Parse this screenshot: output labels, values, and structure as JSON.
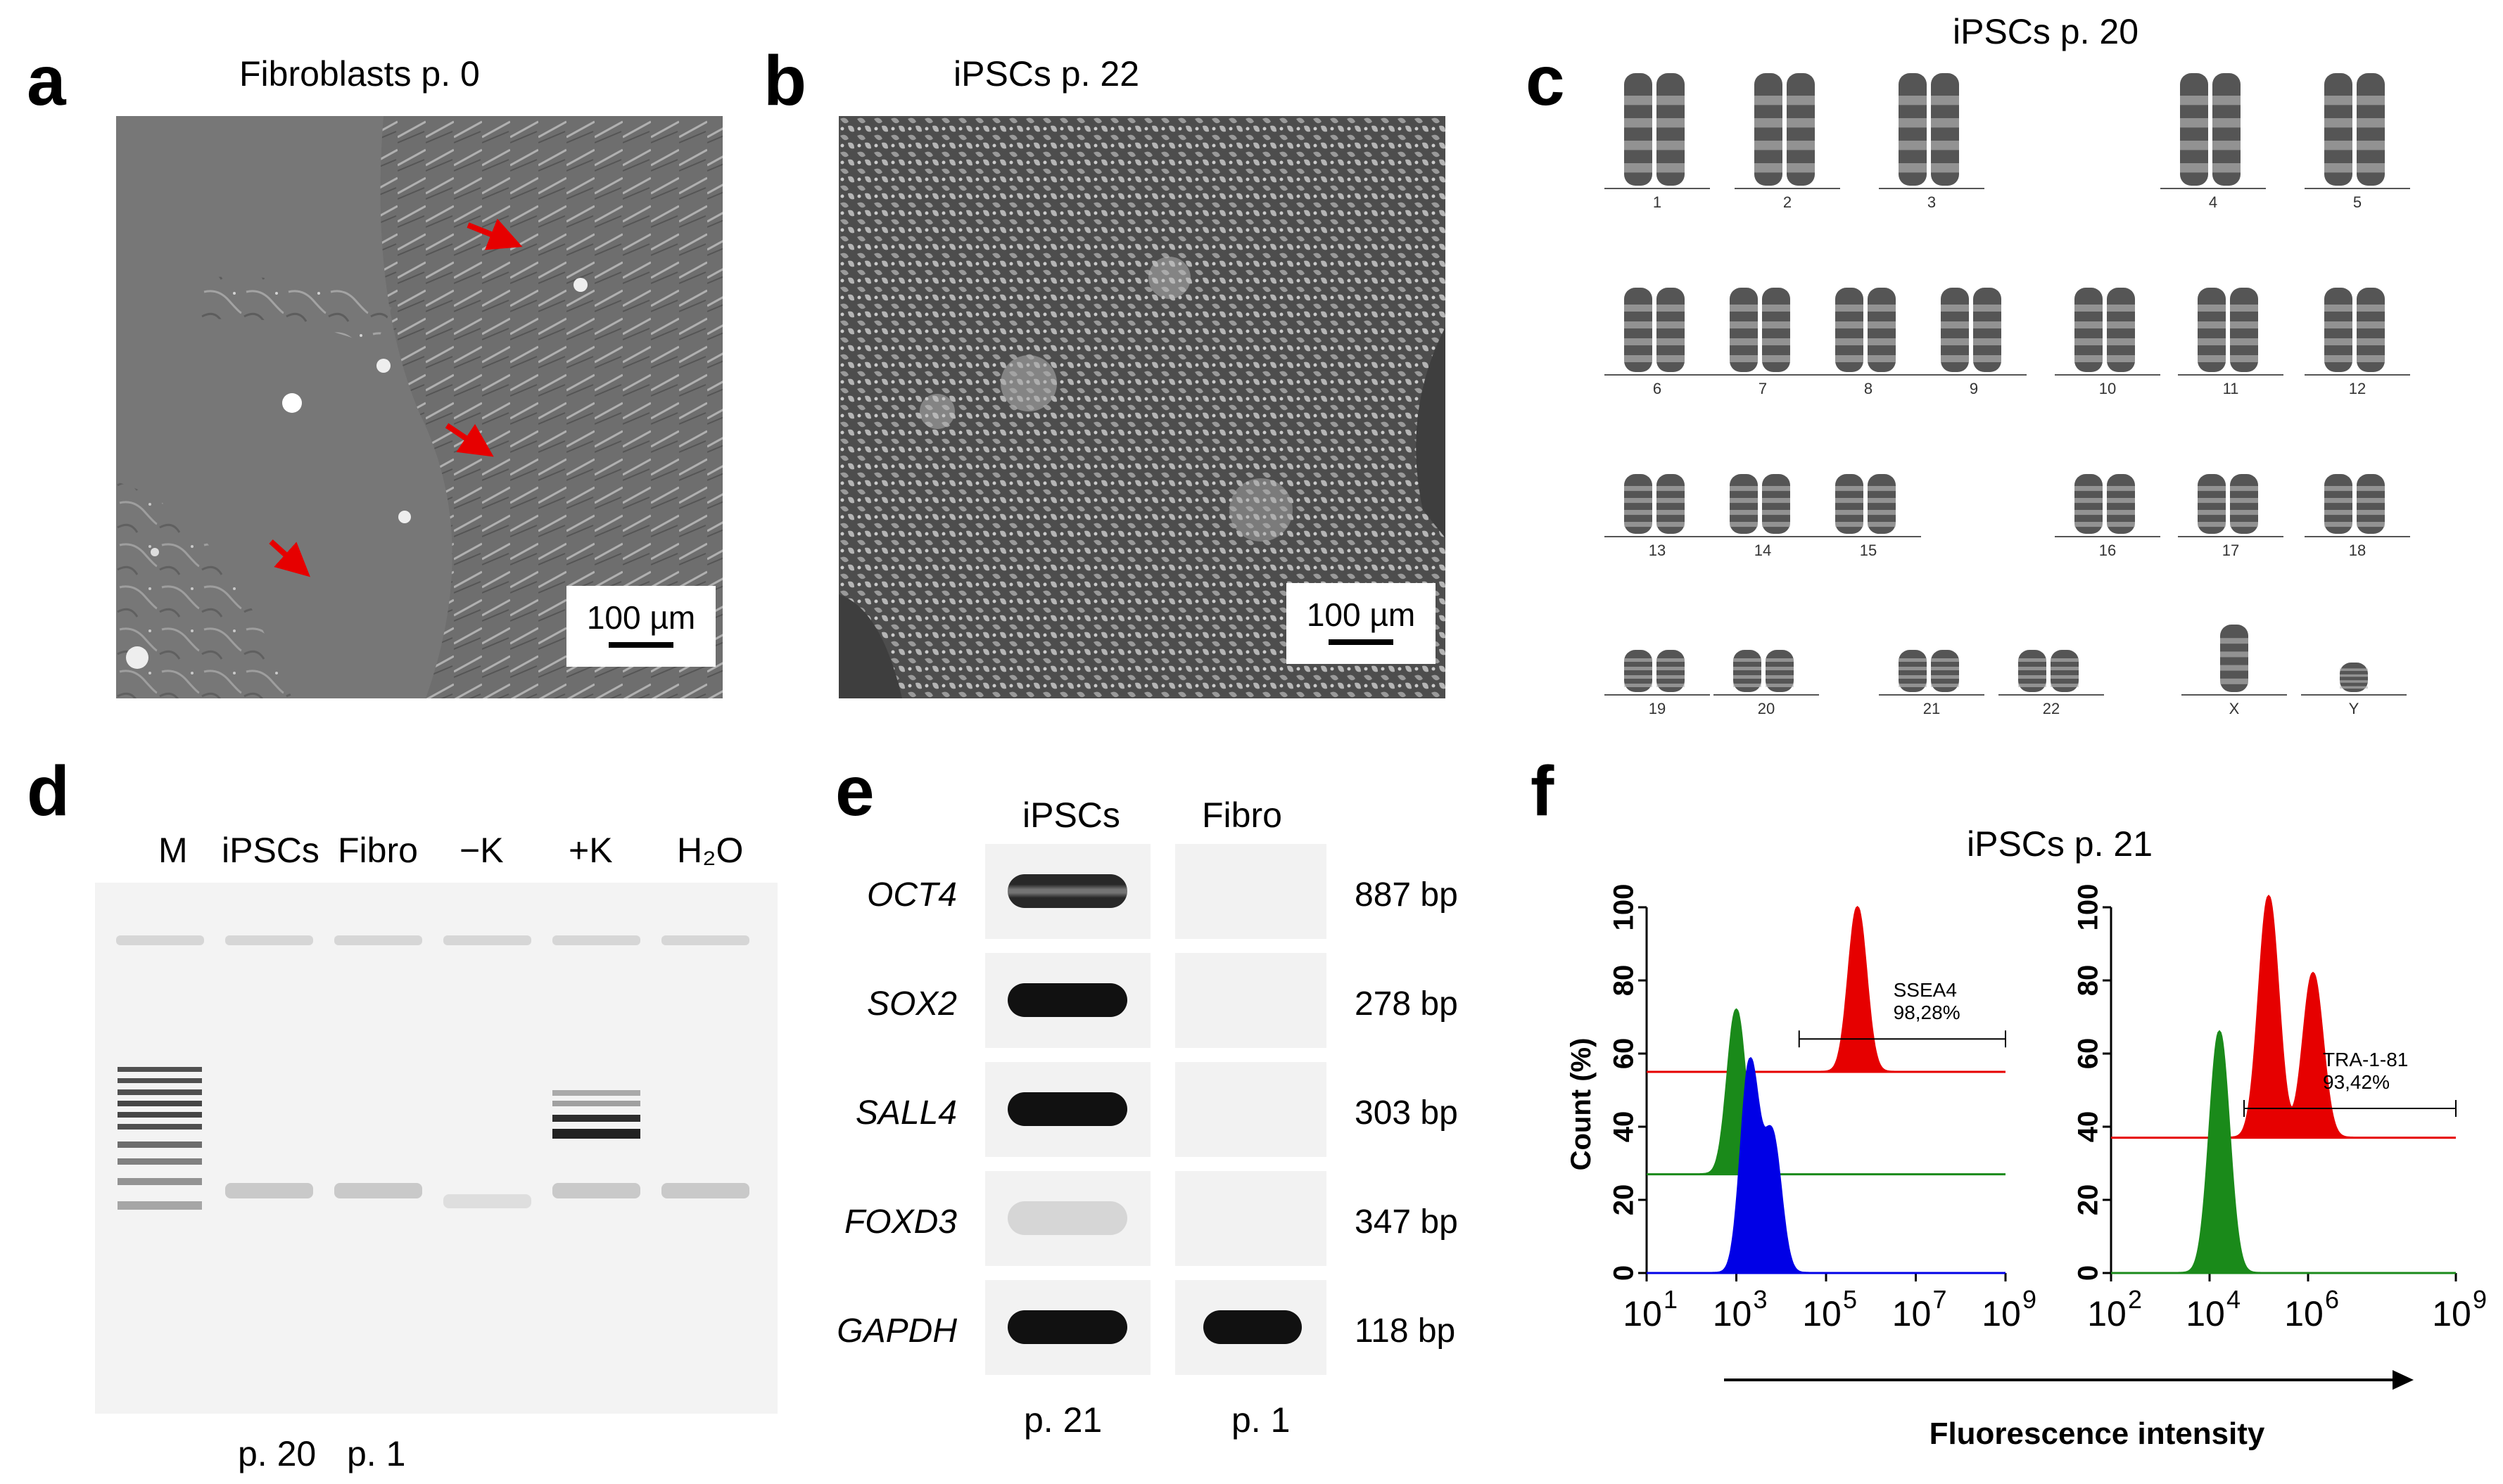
{
  "panels": {
    "a": {
      "letter": "a",
      "title": "Fibroblasts p. 0",
      "scale_label": "100 µm"
    },
    "b": {
      "letter": "b",
      "title": "iPSCs p. 22",
      "scale_label": "100 µm"
    },
    "c": {
      "letter": "c",
      "title": "iPSCs p. 20",
      "chromosomes": [
        "1",
        "2",
        "3",
        "4",
        "5",
        "6",
        "7",
        "8",
        "9",
        "10",
        "11",
        "12",
        "13",
        "14",
        "15",
        "16",
        "17",
        "18",
        "19",
        "20",
        "21",
        "22",
        "X",
        "Y"
      ]
    },
    "d": {
      "letter": "d",
      "lanes": [
        "M",
        "iPSCs",
        "Fibro",
        "−K",
        "+K",
        "H₂O"
      ],
      "passages": [
        "p. 20",
        "p. 1"
      ]
    },
    "e": {
      "letter": "e",
      "columns": [
        "iPSCs",
        "Fibro"
      ],
      "genes": [
        {
          "name": "OCT4",
          "bp": "887 bp"
        },
        {
          "name": "SOX2",
          "bp": "278 bp"
        },
        {
          "name": "SALL4",
          "bp": "303 bp"
        },
        {
          "name": "FOXD3",
          "bp": "347 bp"
        },
        {
          "name": "GAPDH",
          "bp": "118 bp"
        }
      ],
      "passages": [
        "p. 21",
        "p. 1"
      ]
    },
    "f": {
      "letter": "f",
      "title": "iPSCs p. 21",
      "xlabel": "Fluorescence intensity",
      "ylabel": "Count (%)"
    }
  },
  "chart_data": [
    {
      "type": "area",
      "ylabel": "Count (%)",
      "ylim": [
        0,
        100
      ],
      "yticks": [
        "0",
        "20",
        "40",
        "60",
        "80",
        "100"
      ],
      "xscale": "log",
      "xlim_exp": [
        1,
        9
      ],
      "xticks": [
        "10",
        "10",
        "10",
        "10",
        "10"
      ],
      "xtick_exps": [
        "1",
        "3",
        "5",
        "7",
        "9"
      ],
      "gate": {
        "label": "SSEA4",
        "value": "98,28%",
        "from_exp": 4.4,
        "to_exp": 9
      },
      "series": [
        {
          "color": "#e60000",
          "baseline": 55,
          "peaks": [
            {
              "x_exp": 5.7,
              "height": 45
            }
          ]
        },
        {
          "color": "#1a8a1a",
          "baseline": 27,
          "peaks": [
            {
              "x_exp": 3.0,
              "height": 45
            }
          ]
        },
        {
          "color": "#0000e6",
          "baseline": 0,
          "peaks": [
            {
              "x_exp": 3.3,
              "height": 57
            },
            {
              "x_exp": 3.8,
              "height": 37
            }
          ]
        }
      ]
    },
    {
      "type": "area",
      "ylim": [
        0,
        100
      ],
      "yticks": [
        "0",
        "20",
        "40",
        "60",
        "80",
        "100"
      ],
      "xscale": "log",
      "xlim_exp": [
        2,
        9
      ],
      "xticks": [
        "10",
        "10",
        "10",
        "10"
      ],
      "xtick_exps": [
        "2",
        "4",
        "6",
        "9"
      ],
      "gate": {
        "label": "TRA-1-81",
        "value": "93,42%",
        "from_exp": 4.7,
        "to_exp": 9
      },
      "series": [
        {
          "color": "#e60000",
          "baseline": 37,
          "peaks": [
            {
              "x_exp": 5.2,
              "height": 66
            },
            {
              "x_exp": 6.1,
              "height": 45
            }
          ]
        },
        {
          "color": "#1a8a1a",
          "baseline": 0,
          "peaks": [
            {
              "x_exp": 4.2,
              "height": 66
            }
          ]
        }
      ]
    }
  ],
  "colors": {
    "arrow": "#e60000",
    "ssea_red": "#e60000",
    "green": "#1a8a1a",
    "blue": "#0000e6"
  }
}
